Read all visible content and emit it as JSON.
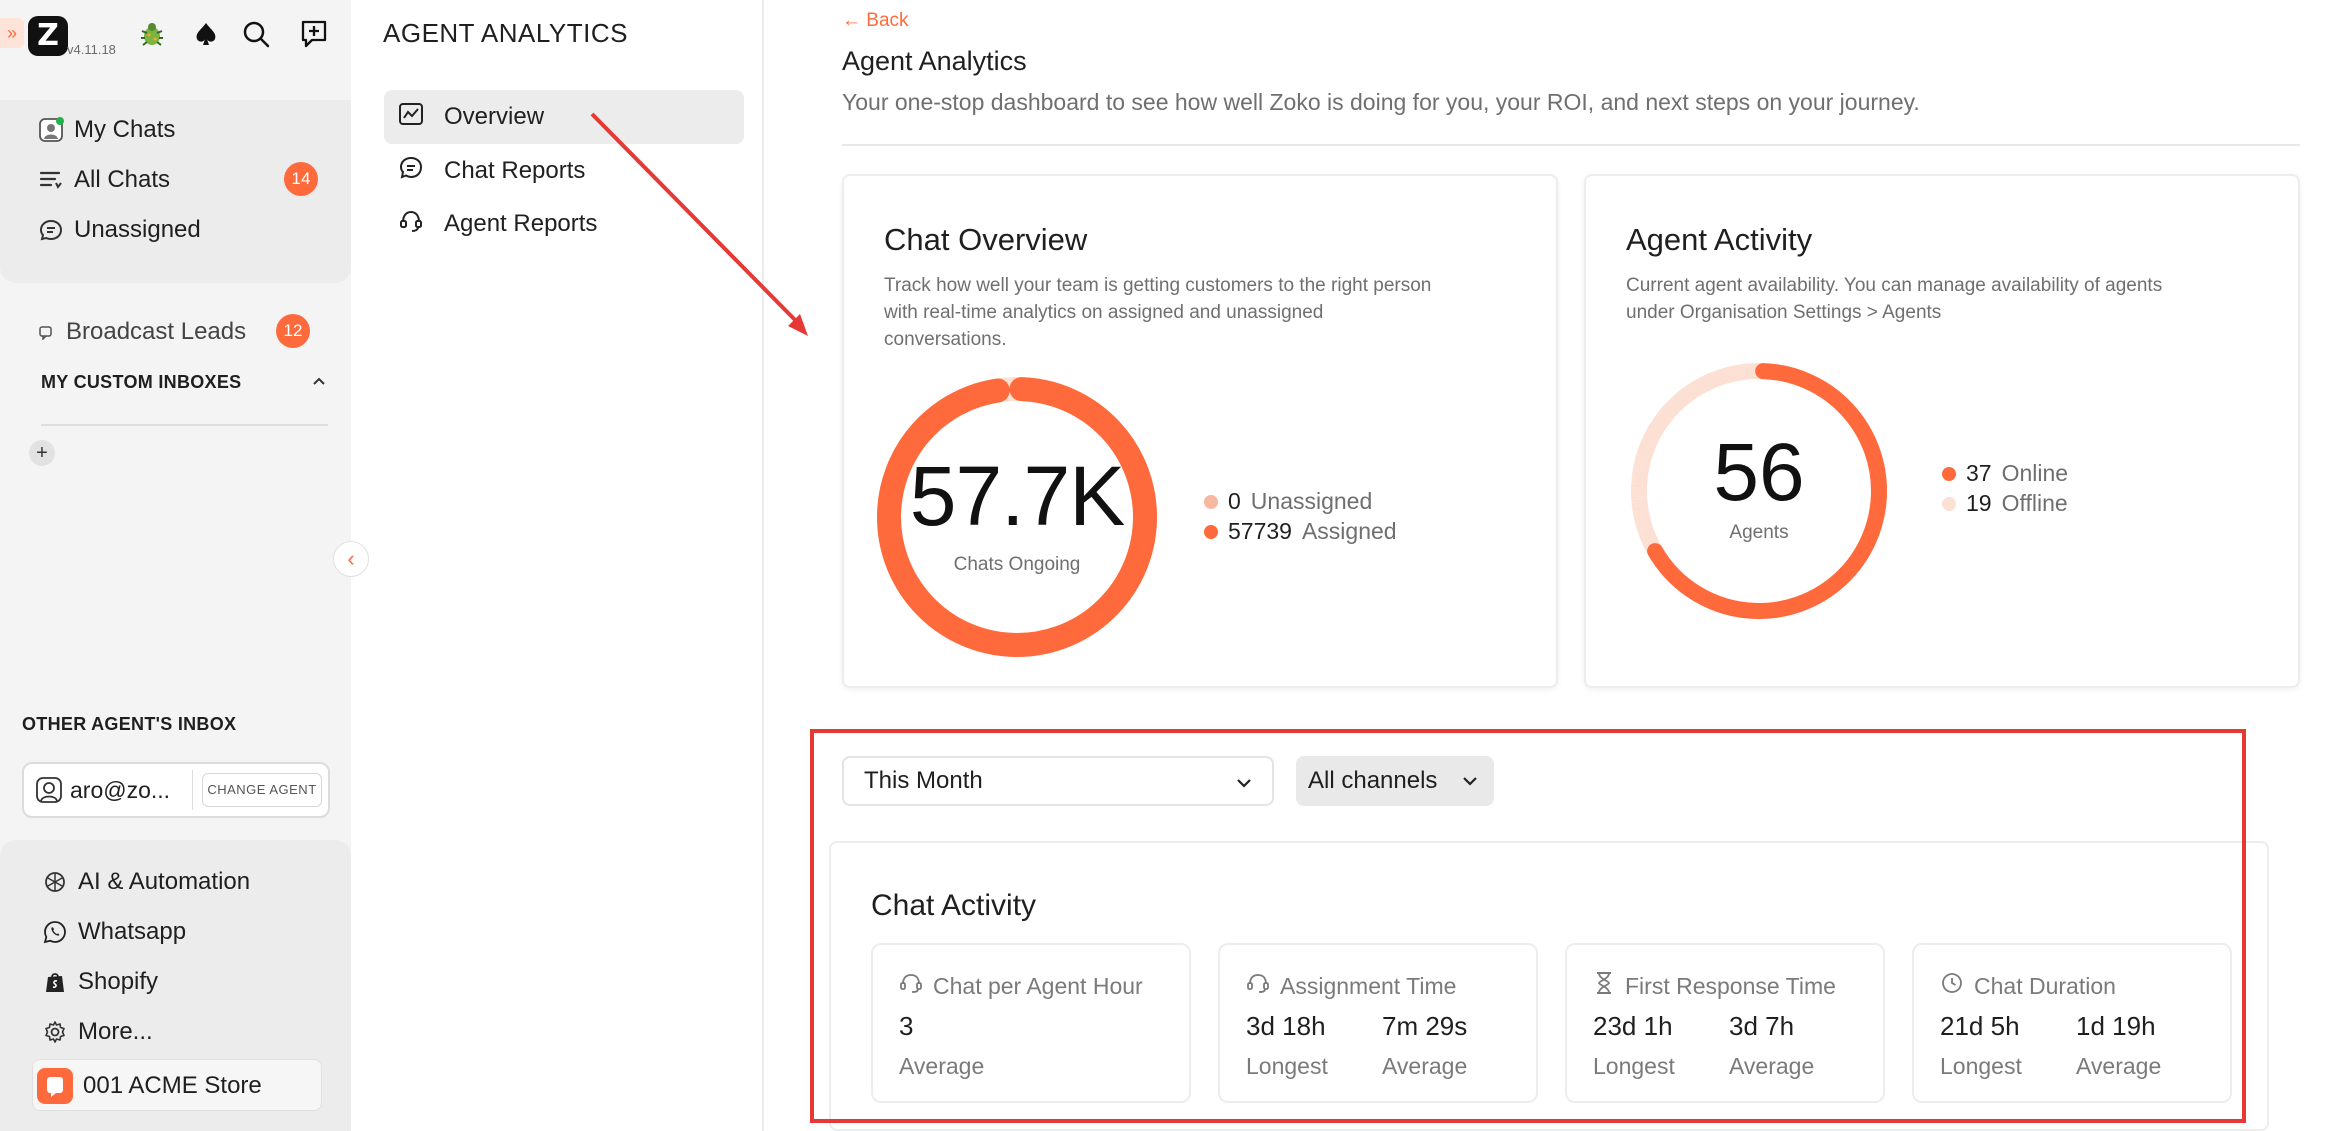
{
  "app": {
    "version": "v4.11.18",
    "expand_glyph": "»",
    "logo_letter": "Z"
  },
  "sidebar": {
    "primary": [
      {
        "label": "My Chats",
        "icon": "avatar-icon"
      },
      {
        "label": "All Chats",
        "icon": "filter-list-icon",
        "badge": "14"
      },
      {
        "label": "Unassigned",
        "icon": "chat-bubble-icon"
      }
    ],
    "broadcast": {
      "label": "Broadcast Leads",
      "badge": "12"
    },
    "custom_inboxes_title": "MY CUSTOM INBOXES",
    "add_glyph": "+",
    "collapse_glyph": "‹",
    "other_inbox_title": "OTHER AGENT'S INBOX",
    "agent_email": "aro@zo...",
    "change_agent_label": "CHANGE AGENT",
    "bottom": [
      {
        "label": "AI & Automation",
        "icon": "ai-icon"
      },
      {
        "label": "Whatsapp",
        "icon": "whatsapp-icon"
      },
      {
        "label": "Shopify",
        "icon": "shopify-icon"
      },
      {
        "label": "More...",
        "icon": "gear-icon"
      }
    ],
    "store_label": "001 ACME Store"
  },
  "subnav": {
    "title": "AGENT ANALYTICS",
    "items": [
      {
        "label": "Overview",
        "active": true
      },
      {
        "label": "Chat Reports",
        "active": false
      },
      {
        "label": "Agent Reports",
        "active": false
      }
    ]
  },
  "main": {
    "back_label": "Back",
    "title": "Agent Analytics",
    "subtitle": "Your one-stop dashboard to see how well Zoko is doing for you, your ROI, and next steps on your journey."
  },
  "chat_overview": {
    "title": "Chat Overview",
    "desc_line1": "Track how well your team is getting customers to the right person",
    "desc_line2": "with real-time analytics on assigned and unassigned",
    "desc_line3": "conversations.",
    "big_value": "57.7K",
    "big_label": "Chats Ongoing",
    "legend": [
      {
        "value": "0",
        "label": "Unassigned",
        "color": "#f7b89f"
      },
      {
        "value": "57739",
        "label": "Assigned",
        "color": "#ff6a3d"
      }
    ],
    "assigned_fraction": 1.0
  },
  "agent_activity": {
    "title": "Agent Activity",
    "desc_line1": "Current agent availability. You can manage availability of agents",
    "desc_line2": "under Organisation Settings > Agents",
    "big_value": "56",
    "big_label": "Agents",
    "legend": [
      {
        "value": "37",
        "label": "Online",
        "color": "#ff6a3d"
      },
      {
        "value": "19",
        "label": "Offline",
        "color": "#fde0d4"
      }
    ],
    "online_fraction": 0.6607
  },
  "filters": {
    "period": "This Month",
    "channel": "All channels"
  },
  "chat_activity": {
    "title": "Chat Activity",
    "metrics": [
      {
        "title": "Chat per Agent Hour",
        "icon": "agent-hour-icon",
        "values": [
          {
            "value": "3",
            "label": "Average"
          }
        ]
      },
      {
        "title": "Assignment Time",
        "icon": "assignment-icon",
        "values": [
          {
            "value": "3d 18h",
            "label": "Longest"
          },
          {
            "value": "7m 29s",
            "label": "Average"
          }
        ]
      },
      {
        "title": "First Response Time",
        "icon": "hourglass-icon",
        "values": [
          {
            "value": "23d 1h",
            "label": "Longest"
          },
          {
            "value": "3d 7h",
            "label": "Average"
          }
        ]
      },
      {
        "title": "Chat Duration",
        "icon": "clock-icon",
        "values": [
          {
            "value": "21d 5h",
            "label": "Longest"
          },
          {
            "value": "1d 19h",
            "label": "Average"
          }
        ]
      }
    ]
  },
  "colors": {
    "accent": "#ff6a3d",
    "annotation_red": "#e53935"
  }
}
